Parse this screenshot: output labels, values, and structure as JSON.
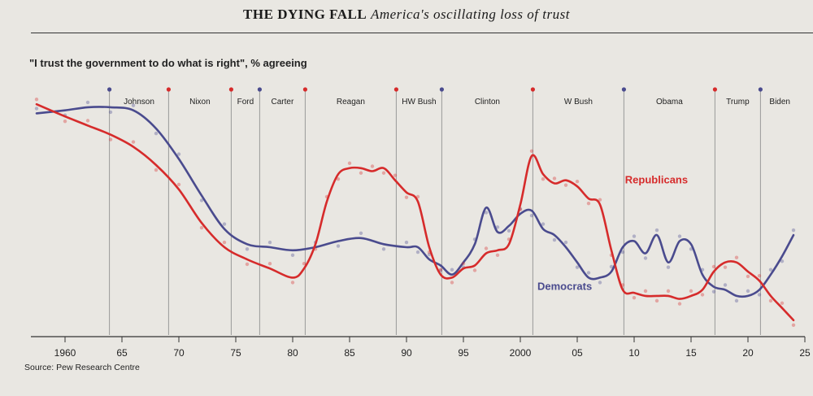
{
  "header": {
    "title_bold": "The dying fall",
    "title_italic": "America's oscillating loss of trust"
  },
  "subtitle": "\"I trust the government to do what is right\", % agreeing",
  "source": "Source: Pew Research Centre",
  "colors": {
    "republicans": "#d62b2b",
    "democrats": "#4a4b8e",
    "axis": "#333333"
  },
  "chart_data": {
    "type": "line",
    "title": "The dying fall: America's oscillating loss of trust",
    "ylabel": "I trust the government to do what is right, % agreeing",
    "xlabel": "",
    "xlim": [
      1957,
      2025
    ],
    "ylim": [
      0,
      85
    ],
    "x_ticks": [
      1960,
      1965,
      1970,
      1975,
      1980,
      1985,
      1990,
      1995,
      2000,
      2005,
      2010,
      2015,
      2020,
      2025
    ],
    "x_tick_labels": [
      "1960",
      "65",
      "70",
      "75",
      "80",
      "85",
      "90",
      "95",
      "2000",
      "05",
      "10",
      "15",
      "20",
      "25"
    ],
    "presidents": [
      {
        "name": "Johnson",
        "start": 1963.9,
        "party": "D"
      },
      {
        "name": "Nixon",
        "start": 1969.1,
        "party": "R"
      },
      {
        "name": "Ford",
        "start": 1974.6,
        "party": "R"
      },
      {
        "name": "Carter",
        "start": 1977.1,
        "party": "D"
      },
      {
        "name": "Reagan",
        "start": 1981.1,
        "party": "R"
      },
      {
        "name": "HW Bush",
        "start": 1989.1,
        "party": "R"
      },
      {
        "name": "Clinton",
        "start": 1993.1,
        "party": "D"
      },
      {
        "name": "W Bush",
        "start": 2001.1,
        "party": "R"
      },
      {
        "name": "Obama",
        "start": 2009.1,
        "party": "D"
      },
      {
        "name": "Trump",
        "start": 2017.1,
        "party": "R"
      },
      {
        "name": "Biden",
        "start": 2021.1,
        "party": "D"
      }
    ],
    "series": [
      {
        "name": "Republicans",
        "x": [
          1957.5,
          1960,
          1962,
          1964,
          1966,
          1968,
          1970,
          1972,
          1974,
          1976,
          1978,
          1980,
          1981,
          1982,
          1983,
          1984,
          1985,
          1986,
          1987,
          1988,
          1989,
          1990,
          1991,
          1992,
          1993,
          1994,
          1995,
          1996,
          1997,
          1998,
          1999,
          2000,
          2001,
          2002,
          2003,
          2004,
          2005,
          2006,
          2007,
          2008,
          2009,
          2010,
          2011,
          2012,
          2013,
          2014,
          2015,
          2016,
          2017,
          2018,
          2019,
          2020,
          2021,
          2022,
          2023,
          2024
        ],
        "values": [
          78,
          74,
          71,
          68,
          64,
          58,
          50,
          39,
          31,
          27,
          24,
          21,
          24,
          32,
          46,
          55,
          57,
          57,
          56,
          57,
          53,
          49,
          46,
          31,
          22,
          21,
          24,
          25,
          29,
          30,
          32,
          45,
          61,
          55,
          52,
          53,
          51,
          47,
          45,
          30,
          17,
          16,
          15,
          15,
          15,
          14,
          15,
          17,
          23,
          26,
          26,
          23,
          20,
          15,
          11,
          7
        ]
      },
      {
        "name": "Democrats",
        "x": [
          1957.5,
          1960,
          1962,
          1964,
          1966,
          1968,
          1970,
          1972,
          1974,
          1976,
          1978,
          1980,
          1982,
          1984,
          1986,
          1988,
          1990,
          1991,
          1992,
          1993,
          1994,
          1995,
          1996,
          1997,
          1998,
          1999,
          2000,
          2001,
          2002,
          2003,
          2004,
          2005,
          2006,
          2007,
          2008,
          2009,
          2010,
          2011,
          2012,
          2013,
          2014,
          2015,
          2016,
          2017,
          2018,
          2019,
          2020,
          2021,
          2022,
          2023,
          2024
        ],
        "values": [
          75,
          76,
          77,
          77,
          76,
          70,
          60,
          48,
          37,
          32,
          31,
          30,
          31,
          33,
          34,
          32,
          31,
          31,
          27,
          25,
          22,
          26,
          32,
          44,
          36,
          38,
          42,
          43,
          37,
          35,
          31,
          26,
          21,
          21,
          23,
          31,
          33,
          29,
          35,
          26,
          33,
          32,
          22,
          18,
          17,
          15,
          15,
          17,
          22,
          28,
          35
        ]
      }
    ],
    "annotations": [
      {
        "text": "Republicans",
        "series": "Republicans"
      },
      {
        "text": "Democrats",
        "series": "Democrats"
      }
    ]
  }
}
